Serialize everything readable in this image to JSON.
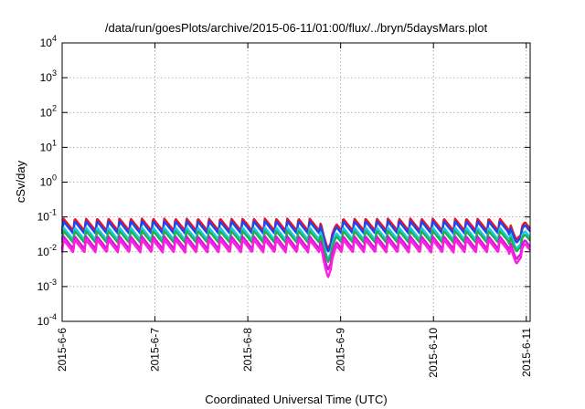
{
  "chart_data": {
    "type": "line",
    "title": "/data/run/goesPlots/archive/2015-06-11/01:00/flux/../bryn/5daysMars.plot",
    "xlabel": "Coordinated Universal Time (UTC)",
    "ylabel": "cSv/day",
    "yscale": "log",
    "ylim": [
      0.0001,
      10000
    ],
    "y_ticks": [
      {
        "value": 0.0001,
        "base": "10",
        "exp": "-4"
      },
      {
        "value": 0.001,
        "base": "10",
        "exp": "-3"
      },
      {
        "value": 0.01,
        "base": "10",
        "exp": "-2"
      },
      {
        "value": 0.1,
        "base": "10",
        "exp": "-1"
      },
      {
        "value": 1,
        "base": "10",
        "exp": "0"
      },
      {
        "value": 10,
        "base": "10",
        "exp": "1"
      },
      {
        "value": 100,
        "base": "10",
        "exp": "2"
      },
      {
        "value": 1000,
        "base": "10",
        "exp": "3"
      },
      {
        "value": 10000,
        "base": "10",
        "exp": "4"
      }
    ],
    "x_ticks": [
      "2015-6-6",
      "2015-6-7",
      "2015-6-8",
      "2015-6-9",
      "2015-6-10",
      "2015-6-11"
    ],
    "xlim": [
      "2015-06-06 00:00",
      "2015-06-11 01:00"
    ],
    "grid": true,
    "legend": "none",
    "series": [
      {
        "color": "#e8132b",
        "peak": 0.09,
        "trough": 0.04,
        "dips": [
          {
            "t": "2015-06-08 20:45",
            "value": 0.012
          },
          {
            "t": "2015-06-10 21:30",
            "value": 0.022
          }
        ]
      },
      {
        "color": "#1a47f0",
        "peak": 0.075,
        "trough": 0.033,
        "dips": [
          {
            "t": "2015-06-08 20:45",
            "value": 0.01
          },
          {
            "t": "2015-06-10 21:30",
            "value": 0.018
          }
        ]
      },
      {
        "color": "#19c9e8",
        "peak": 0.05,
        "trough": 0.022,
        "dips": [
          {
            "t": "2015-06-08 20:45",
            "value": 0.006
          },
          {
            "t": "2015-06-10 21:30",
            "value": 0.012
          }
        ]
      },
      {
        "color": "#22b04a",
        "peak": 0.04,
        "trough": 0.018,
        "dips": [
          {
            "t": "2015-06-08 20:45",
            "value": 0.005
          },
          {
            "t": "2015-06-10 21:30",
            "value": 0.01
          }
        ]
      },
      {
        "color": "#d21ad8",
        "peak": 0.028,
        "trough": 0.012,
        "dips": [
          {
            "t": "2015-06-08 20:45",
            "value": 0.003
          },
          {
            "t": "2015-06-10 21:30",
            "value": 0.006
          }
        ]
      },
      {
        "color": "#ff1ee0",
        "peak": 0.022,
        "trough": 0.0095,
        "dips": [
          {
            "t": "2015-06-08 20:45",
            "value": 0.0018
          },
          {
            "t": "2015-06-10 21:30",
            "value": 0.0045
          }
        ]
      }
    ],
    "oscillation_cycles_per_day": 8.3
  }
}
